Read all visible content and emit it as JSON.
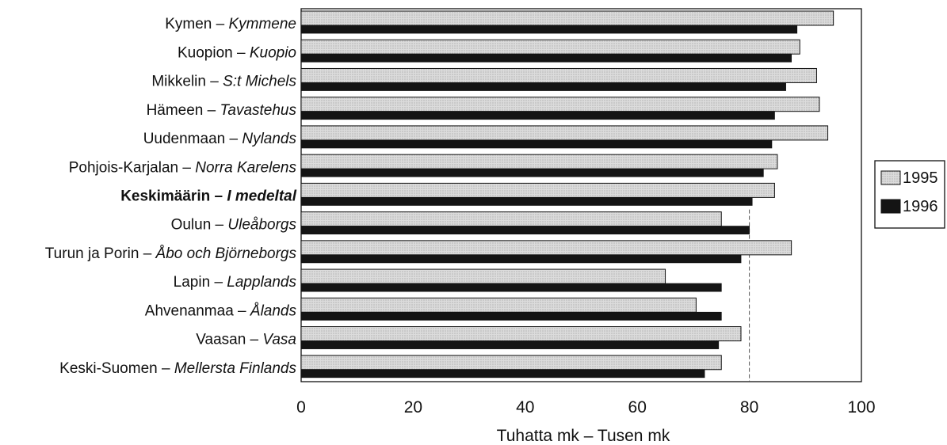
{
  "chart_data": {
    "type": "bar",
    "orientation": "horizontal",
    "categories": [
      {
        "plain": "Kymen – ",
        "italic": "Kymmene",
        "bold": false
      },
      {
        "plain": "Kuopion – ",
        "italic": "Kuopio",
        "bold": false
      },
      {
        "plain": "Mikkelin – ",
        "italic": "S:t Michels",
        "bold": false
      },
      {
        "plain": "Hämeen – ",
        "italic": "Tavastehus",
        "bold": false
      },
      {
        "plain": "Uudenmaan – ",
        "italic": "Nylands",
        "bold": false
      },
      {
        "plain": "Pohjois-Karjalan – ",
        "italic": "Norra Karelens",
        "bold": false
      },
      {
        "plain": "Keskimäärin – ",
        "italic": "I medeltal",
        "bold": true
      },
      {
        "plain": "Oulun – ",
        "italic": "Uleåborgs",
        "bold": false
      },
      {
        "plain": "Turun ja Porin – ",
        "italic": "Åbo och Björneborgs",
        "bold": false
      },
      {
        "plain": "Lapin – ",
        "italic": "Lapplands",
        "bold": false
      },
      {
        "plain": "Ahvenanmaa – ",
        "italic": "Ålands",
        "bold": false
      },
      {
        "plain": "Vaasan – ",
        "italic": "Vasa",
        "bold": false
      },
      {
        "plain": "Keski-Suomen – ",
        "italic": "Mellersta Finlands",
        "bold": false
      }
    ],
    "series": [
      {
        "name": "1995",
        "color": "#dcdcdc",
        "values": [
          95,
          89,
          92,
          92.5,
          94,
          85,
          84.5,
          75,
          87.5,
          65,
          70.5,
          78.5,
          75
        ]
      },
      {
        "name": "1996",
        "color": "#141414",
        "values": [
          88.5,
          87.5,
          86.5,
          84.5,
          84,
          82.5,
          80.5,
          80,
          78.5,
          75,
          75,
          74.5,
          72
        ]
      }
    ],
    "xlim": [
      0,
      100
    ],
    "xticks": [
      0,
      20,
      40,
      60,
      80,
      100
    ],
    "xlabel": "Tuhatta mk – Tusen mk",
    "reference_line": 80,
    "legend_position": "right"
  }
}
